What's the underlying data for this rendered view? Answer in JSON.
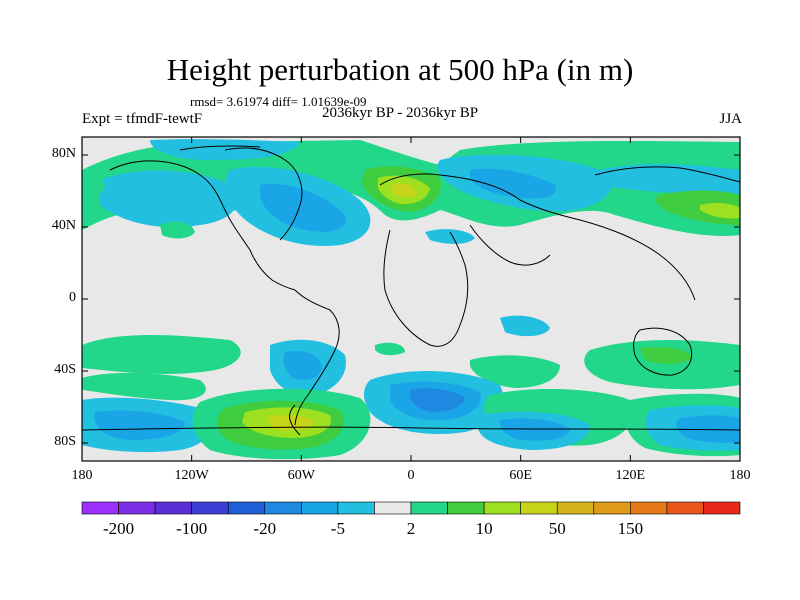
{
  "title": "Height perturbation at 500 hPa (in m)",
  "stats": "rmsd= 3.61974 diff= 1.01639e-09",
  "left_label": "Expt = tfmdF-tewtF",
  "center_label": "2036kyr BP - 2036kyr BP",
  "right_label": "JJA",
  "lat_ticks": [
    {
      "label": "80N",
      "value": 80
    },
    {
      "label": "40N",
      "value": 40
    },
    {
      "label": "0",
      "value": 0
    },
    {
      "label": "40S",
      "value": -40
    },
    {
      "label": "80S",
      "value": -80
    }
  ],
  "lon_ticks": [
    {
      "label": "180",
      "value": -180
    },
    {
      "label": "120W",
      "value": -120
    },
    {
      "label": "60W",
      "value": -60
    },
    {
      "label": "0",
      "value": 0
    },
    {
      "label": "60E",
      "value": 60
    },
    {
      "label": "120E",
      "value": 120
    },
    {
      "label": "180",
      "value": 180
    }
  ],
  "map_extent": {
    "lon_min": -180,
    "lon_max": 180,
    "lat_min": -90,
    "lat_max": 90
  },
  "colorbar": {
    "colors": [
      "#9b30ff",
      "#7b2ee6",
      "#5a2fd6",
      "#3b3fd6",
      "#1f5fd6",
      "#1f88e0",
      "#1aa6e6",
      "#22bfe0",
      "#e8e8e8",
      "#22d68a",
      "#3fcc3f",
      "#9ce01f",
      "#c8d41a",
      "#d6b21a",
      "#e09a1a",
      "#e67a1a",
      "#e8561a",
      "#e8281a"
    ],
    "labels": [
      "-200",
      "-100",
      "-20",
      "-5",
      "2",
      "10",
      "50",
      "150"
    ],
    "label_boundaries": [
      1,
      3,
      5,
      7,
      9,
      11,
      13,
      15
    ]
  },
  "field_colors": {
    "neg1": "#22bfe0",
    "neg2": "#1aa6e6",
    "neg3": "#1f88e0",
    "pos1": "#22d68a",
    "pos2": "#3fcc3f",
    "pos3": "#9ce01f",
    "pos4": "#c8d41a",
    "neutral": "#e8e8e8"
  }
}
